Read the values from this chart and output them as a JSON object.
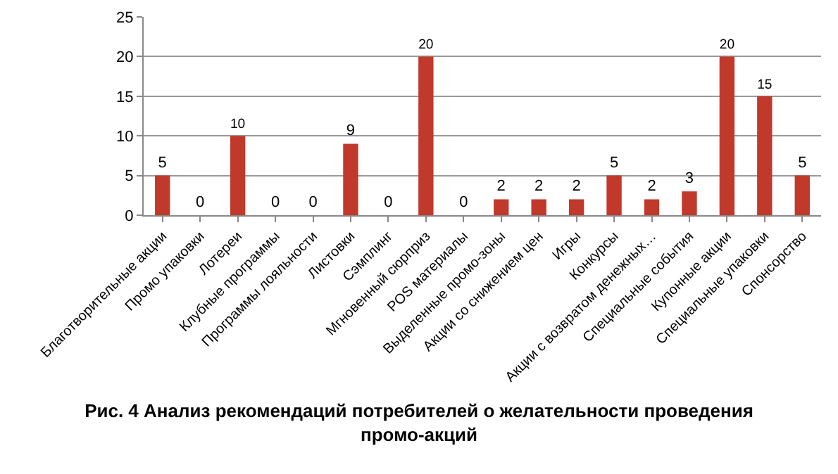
{
  "chart_data": {
    "type": "bar",
    "title": "Рис. 4 Анализ рекомендаций потребителей о желательности проведения\nпромо-акций",
    "categories": [
      "Благотворительные акции",
      "Промо упаковки",
      "Лотереи",
      "Клубные программы",
      "Программы лояльности",
      "Листовки",
      "Сэмплинг",
      "Мгновенный сюрприз",
      "POS материалы",
      "Выделенные промо-зоны",
      "Акции со снижением цен",
      "Игры",
      "Конкурсы",
      "Акции с возвратом денежных…",
      "Специальные события",
      "Купонные акции",
      "Специальные упаковки",
      "Спонсорство"
    ],
    "values": [
      5,
      0,
      10,
      0,
      0,
      9,
      0,
      20,
      0,
      2,
      2,
      2,
      5,
      2,
      3,
      20,
      15,
      5
    ],
    "color": "#c0392b",
    "ylim": [
      0,
      25
    ],
    "yticks": [
      0,
      5,
      10,
      15,
      20,
      25
    ],
    "grid": "y",
    "data_labels": true,
    "legend": false
  }
}
